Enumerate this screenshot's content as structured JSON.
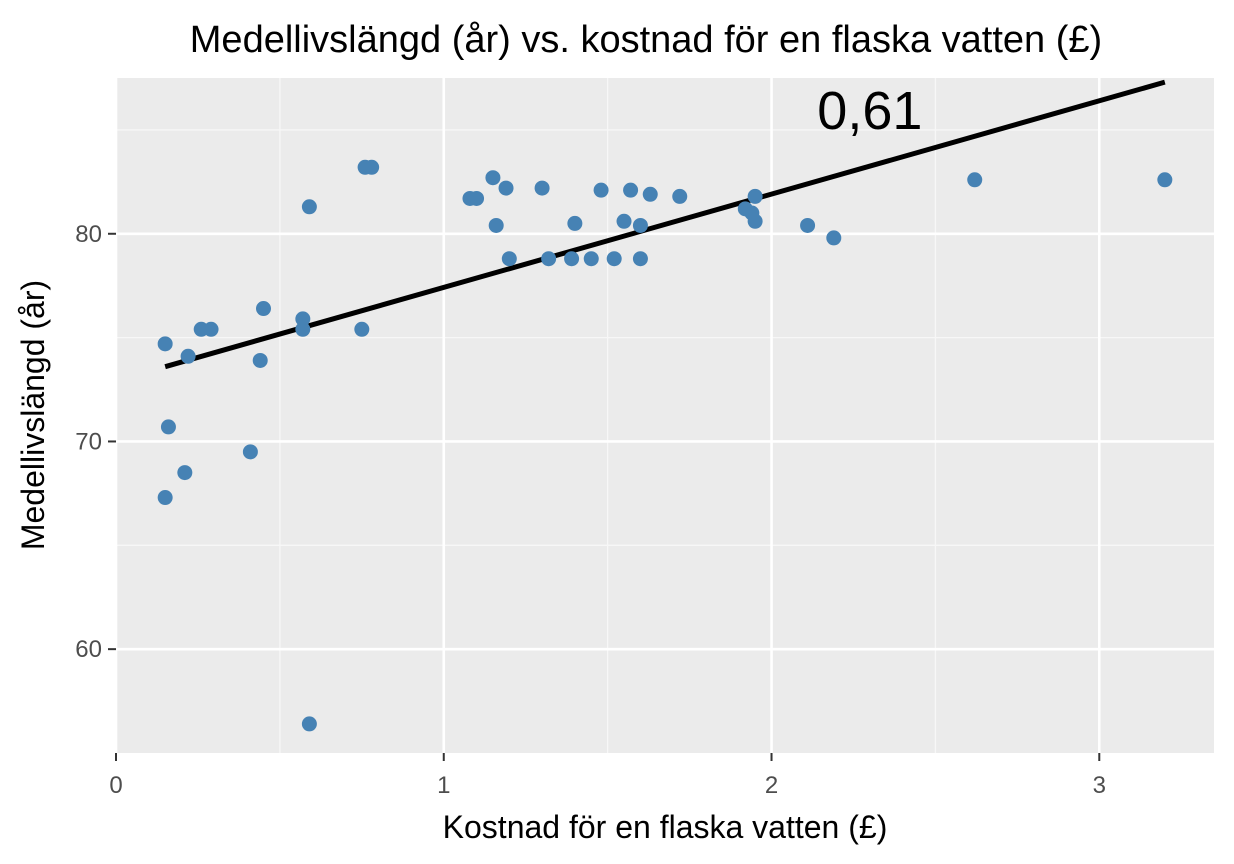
{
  "chart_data": {
    "type": "scatter",
    "title": "Medellivslängd (år) vs. kostnad för en flaska vatten (£)",
    "xlabel": "Kostnad för en flaska vatten (£)",
    "ylabel": "Medellivslängd (år)",
    "xlim": [
      0,
      3.35
    ],
    "ylim": [
      55,
      87.5
    ],
    "x_ticks": [
      0,
      1,
      2,
      3
    ],
    "x_tick_labels": [
      "0",
      "1",
      "2",
      "3"
    ],
    "y_ticks": [
      60,
      70,
      80
    ],
    "y_tick_labels": [
      "60",
      "70",
      "80"
    ],
    "grid": true,
    "point_color": "#4682b4",
    "background_color": "#ebebeb",
    "points": [
      {
        "x": 0.15,
        "y": 74.7
      },
      {
        "x": 0.16,
        "y": 70.7
      },
      {
        "x": 0.15,
        "y": 67.3
      },
      {
        "x": 0.21,
        "y": 68.5
      },
      {
        "x": 0.22,
        "y": 74.1
      },
      {
        "x": 0.26,
        "y": 75.4
      },
      {
        "x": 0.29,
        "y": 75.4
      },
      {
        "x": 0.41,
        "y": 69.5
      },
      {
        "x": 0.44,
        "y": 73.9
      },
      {
        "x": 0.45,
        "y": 76.4
      },
      {
        "x": 0.57,
        "y": 75.9
      },
      {
        "x": 0.57,
        "y": 75.4
      },
      {
        "x": 0.59,
        "y": 81.3
      },
      {
        "x": 0.59,
        "y": 56.4
      },
      {
        "x": 0.75,
        "y": 75.4
      },
      {
        "x": 0.76,
        "y": 83.2
      },
      {
        "x": 0.78,
        "y": 83.2
      },
      {
        "x": 1.08,
        "y": 81.7
      },
      {
        "x": 1.1,
        "y": 81.7
      },
      {
        "x": 1.15,
        "y": 82.7
      },
      {
        "x": 1.16,
        "y": 80.4
      },
      {
        "x": 1.19,
        "y": 82.2
      },
      {
        "x": 1.2,
        "y": 78.8
      },
      {
        "x": 1.3,
        "y": 82.2
      },
      {
        "x": 1.32,
        "y": 78.8
      },
      {
        "x": 1.39,
        "y": 78.8
      },
      {
        "x": 1.4,
        "y": 80.5
      },
      {
        "x": 1.45,
        "y": 78.8
      },
      {
        "x": 1.48,
        "y": 82.1
      },
      {
        "x": 1.52,
        "y": 78.8
      },
      {
        "x": 1.55,
        "y": 80.6
      },
      {
        "x": 1.57,
        "y": 82.1
      },
      {
        "x": 1.6,
        "y": 80.4
      },
      {
        "x": 1.6,
        "y": 78.8
      },
      {
        "x": 1.63,
        "y": 81.9
      },
      {
        "x": 1.72,
        "y": 81.8
      },
      {
        "x": 1.92,
        "y": 81.2
      },
      {
        "x": 1.94,
        "y": 81.0
      },
      {
        "x": 1.95,
        "y": 81.8
      },
      {
        "x": 1.95,
        "y": 80.6
      },
      {
        "x": 2.11,
        "y": 80.4
      },
      {
        "x": 2.19,
        "y": 79.8
      },
      {
        "x": 2.62,
        "y": 82.6
      },
      {
        "x": 3.2,
        "y": 82.6
      }
    ],
    "trend_line": {
      "x": [
        0.15,
        3.2
      ],
      "y": [
        73.6,
        87.3
      ],
      "color": "#000000"
    },
    "annotation": {
      "text": "0,61",
      "x": 2.3,
      "y": 85.9
    }
  }
}
